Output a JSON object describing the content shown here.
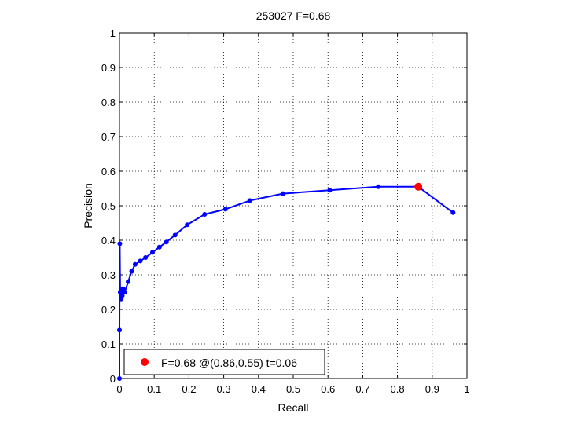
{
  "chart_data": {
    "type": "line",
    "title": "253027 F=0.68",
    "xlabel": "Recall",
    "ylabel": "Precision",
    "xlim": [
      0,
      1
    ],
    "ylim": [
      0,
      1
    ],
    "grid": true,
    "x_ticks": [
      "0",
      "0.1",
      "0.2",
      "0.3",
      "0.4",
      "0.5",
      "0.6",
      "0.7",
      "0.8",
      "0.9",
      "1"
    ],
    "y_ticks": [
      "0",
      "0.1",
      "0.2",
      "0.3",
      "0.4",
      "0.5",
      "0.6",
      "0.7",
      "0.8",
      "0.9",
      "1"
    ],
    "series": [
      {
        "color": "#0000ff",
        "points": [
          [
            0.0,
            0.0
          ],
          [
            0.0,
            0.14
          ],
          [
            0.001,
            0.39
          ],
          [
            0.002,
            0.25
          ],
          [
            0.005,
            0.23
          ],
          [
            0.008,
            0.24
          ],
          [
            0.01,
            0.26
          ],
          [
            0.015,
            0.25
          ],
          [
            0.025,
            0.28
          ],
          [
            0.035,
            0.31
          ],
          [
            0.045,
            0.33
          ],
          [
            0.06,
            0.34
          ],
          [
            0.075,
            0.35
          ],
          [
            0.095,
            0.365
          ],
          [
            0.115,
            0.38
          ],
          [
            0.135,
            0.395
          ],
          [
            0.16,
            0.415
          ],
          [
            0.195,
            0.445
          ],
          [
            0.245,
            0.475
          ],
          [
            0.305,
            0.49
          ],
          [
            0.375,
            0.515
          ],
          [
            0.47,
            0.535
          ],
          [
            0.605,
            0.545
          ],
          [
            0.745,
            0.555
          ],
          [
            0.86,
            0.555
          ],
          [
            0.96,
            0.48
          ]
        ]
      }
    ],
    "highlight": {
      "x": 0.86,
      "y": 0.555,
      "color": "#ff0000"
    },
    "legend": {
      "position": "bottom-left",
      "label": "F=0.68 @(0.86,0.55) t=0.06",
      "marker_color": "#ff0000"
    }
  }
}
